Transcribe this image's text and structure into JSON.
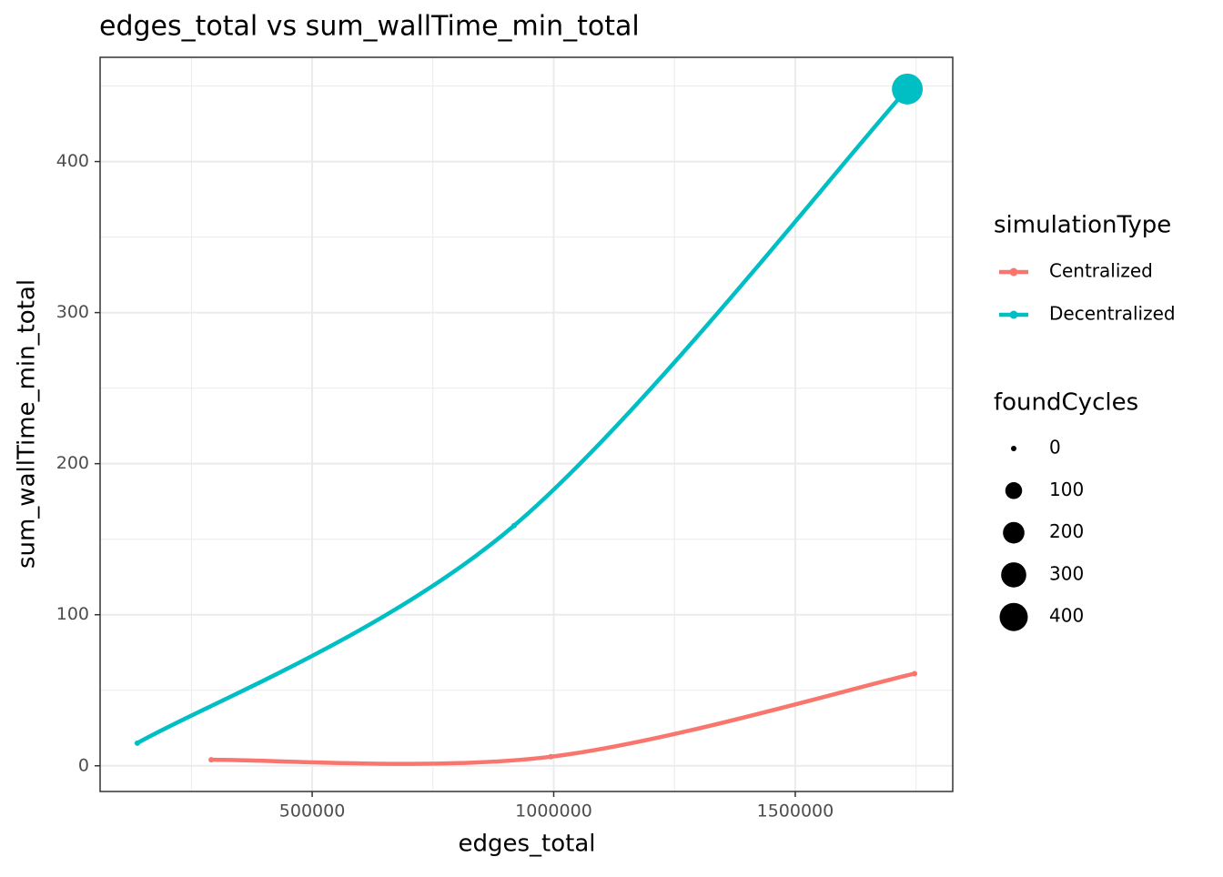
{
  "chart_data": {
    "type": "line",
    "title": "edges_total  vs  sum_wallTime_min_total",
    "x_label": "edges_total",
    "y_label": "sum_wallTime_min_total",
    "xlim": [
      61000,
      1826000
    ],
    "ylim": [
      -17,
      469
    ],
    "xticks": [
      500000,
      1000000,
      1500000
    ],
    "yticks": [
      0,
      100,
      200,
      300,
      400
    ],
    "x_minor_ticks": [
      250000,
      750000,
      1250000,
      1750000
    ],
    "y_minor_ticks": [
      50,
      150,
      250,
      350,
      450
    ],
    "grid": true,
    "legend_title": "simulationType",
    "series": [
      {
        "name": "Centralized",
        "color": "#f8766d",
        "x": [
          291000,
          994000,
          1747000
        ],
        "values": [
          4,
          6,
          61
        ],
        "sizes": [
          0,
          0,
          0
        ]
      },
      {
        "name": "Decentralized",
        "color": "#00bfc4",
        "x": [
          138000,
          918000,
          1732000
        ],
        "values": [
          15,
          159,
          448
        ],
        "sizes": [
          0,
          0,
          500
        ]
      }
    ],
    "size_legend": {
      "title": "foundCycles",
      "values": [
        0,
        100,
        200,
        300,
        400
      ]
    }
  }
}
